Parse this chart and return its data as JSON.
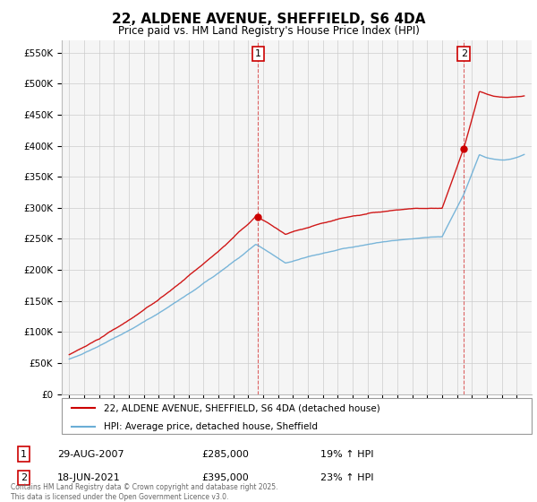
{
  "title": "22, ALDENE AVENUE, SHEFFIELD, S6 4DA",
  "subtitle": "Price paid vs. HM Land Registry's House Price Index (HPI)",
  "ylabel_ticks": [
    "£0",
    "£50K",
    "£100K",
    "£150K",
    "£200K",
    "£250K",
    "£300K",
    "£350K",
    "£400K",
    "£450K",
    "£500K",
    "£550K"
  ],
  "ytick_values": [
    0,
    50000,
    100000,
    150000,
    200000,
    250000,
    300000,
    350000,
    400000,
    450000,
    500000,
    550000
  ],
  "ylim": [
    0,
    570000
  ],
  "legend_line1": "22, ALDENE AVENUE, SHEFFIELD, S6 4DA (detached house)",
  "legend_line2": "HPI: Average price, detached house, Sheffield",
  "annotation1_date": "29-AUG-2007",
  "annotation1_price": "£285,000",
  "annotation1_hpi": "19% ↑ HPI",
  "annotation2_date": "18-JUN-2021",
  "annotation2_price": "£395,000",
  "annotation2_hpi": "23% ↑ HPI",
  "footer": "Contains HM Land Registry data © Crown copyright and database right 2025.\nThis data is licensed under the Open Government Licence v3.0.",
  "hpi_color": "#6baed6",
  "price_color": "#cc0000",
  "vline_color": "#cc0000",
  "bg_color": "#ffffff",
  "grid_color": "#cccccc",
  "sale1_year": 2007.66,
  "sale1_price": 285000,
  "sale2_year": 2021.46,
  "sale2_price": 395000
}
